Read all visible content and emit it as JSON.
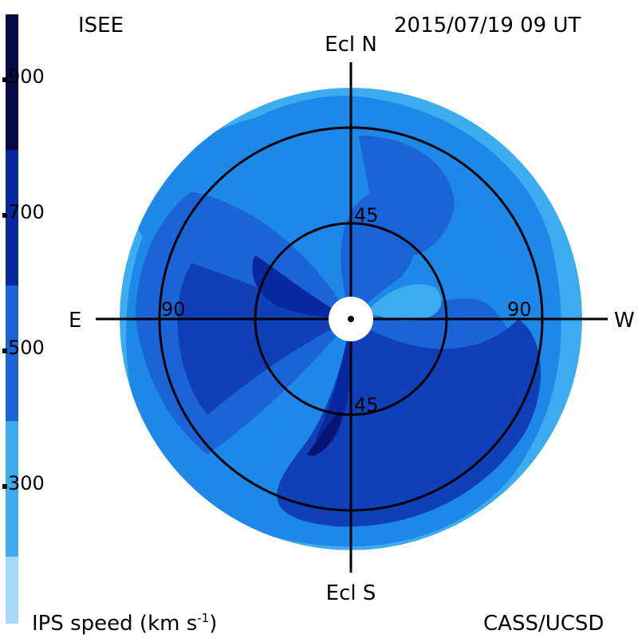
{
  "header": {
    "institution": "ISEE",
    "timestamp": "2015/07/19 09 UT"
  },
  "footer": {
    "speed_label": "IPS speed (km s",
    "speed_label_exp": "-1",
    "speed_label_close": ")",
    "credit": "CASS/UCSD"
  },
  "axes": {
    "north": "Ecl N",
    "south": "Ecl S",
    "east": "E",
    "west": "W",
    "inner_ring_top": "45",
    "inner_ring_bottom": "45",
    "outer_ring_left": "90",
    "outer_ring_right": "90"
  },
  "colorbar": {
    "title": "IPS speed",
    "unit": "km s-1",
    "tick_labels": [
      "900",
      "700",
      "500",
      "300"
    ],
    "tick_values": [
      900,
      700,
      500,
      300
    ],
    "range": [
      100,
      1000
    ],
    "levels": [
      {
        "min": 100,
        "max": 200,
        "color": "#a8d8f8"
      },
      {
        "min": 200,
        "max": 300,
        "color": "#3cacf0"
      },
      {
        "min": 300,
        "max": 400,
        "color": "#1e88e8"
      },
      {
        "min": 400,
        "max": 500,
        "color": "#1a64d8"
      },
      {
        "min": 500,
        "max": 600,
        "color": "#1040b8"
      },
      {
        "min": 600,
        "max": 700,
        "color": "#0828a0"
      },
      {
        "min": 700,
        "max": 800,
        "color": "#041470"
      },
      {
        "min": 800,
        "max": 900,
        "color": "#020a48"
      },
      {
        "min": 900,
        "max": 1000,
        "color": "#000220"
      }
    ]
  },
  "map_rings_deg": [
    45,
    90
  ],
  "colors": {
    "background": "#ffffff",
    "lines": "#000000"
  }
}
